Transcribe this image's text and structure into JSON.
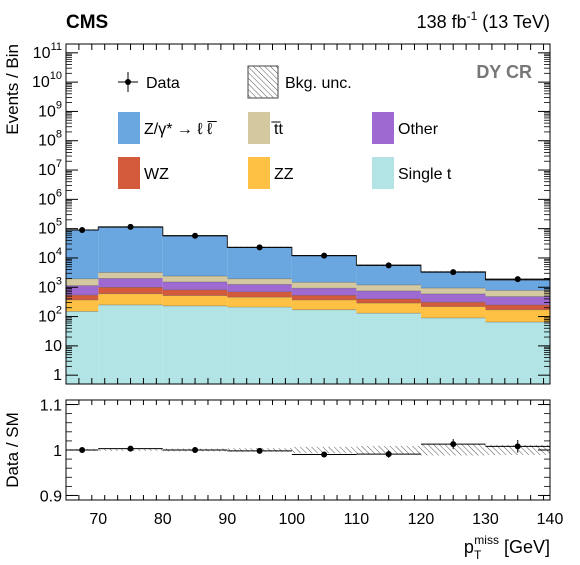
{
  "header": {
    "experiment": "CMS",
    "lumi_value": "138 fb",
    "lumi_exp": "-1",
    "energy": "(13 TeV)",
    "region": "DY CR"
  },
  "chart_data": [
    {
      "type": "bar",
      "stacked": true,
      "yscale": "log",
      "ylabel": "Events / Bin",
      "ylim": [
        0.5,
        200000000000
      ],
      "xlim": [
        65,
        140
      ],
      "bin_edges": [
        65,
        70,
        80,
        90,
        100,
        110,
        120,
        130,
        140
      ],
      "series": [
        {
          "name": "Single t",
          "key": "singlet",
          "color": "#b2e4e6",
          "values": [
            150,
            250,
            230,
            210,
            170,
            130,
            90,
            65
          ]
        },
        {
          "name": "ZZ",
          "key": "zz",
          "color": "#ffc144",
          "values": [
            220,
            350,
            290,
            250,
            200,
            160,
            130,
            105
          ]
        },
        {
          "name": "WZ",
          "key": "wz",
          "color": "#d45a3c",
          "values": [
            170,
            400,
            300,
            240,
            160,
            110,
            90,
            80
          ]
        },
        {
          "name": "Other",
          "key": "other",
          "color": "#9e6ad2",
          "values": [
            600,
            1000,
            700,
            550,
            400,
            350,
            280,
            230
          ]
        },
        {
          "name": "t̅t",
          "key": "ttbar",
          "color": "#d3c89f",
          "values": [
            800,
            1200,
            900,
            700,
            550,
            450,
            350,
            300
          ]
        },
        {
          "name": "Z/γ* → ℓ ℓ̅",
          "key": "dy",
          "color": "#6aa6e0",
          "values": [
            88000,
            110000,
            55000,
            21000,
            10500,
            4500,
            2400,
            1000
          ]
        }
      ],
      "data": {
        "name": "Data",
        "x": [
          67.5,
          75,
          85,
          95,
          105,
          115,
          125,
          135
        ],
        "y": [
          90000,
          115000,
          57000,
          23000,
          12000,
          5600,
          3300,
          1900
        ]
      },
      "uncertainty_label": "Bkg. unc.",
      "legend": "top"
    },
    {
      "type": "scatter",
      "ylabel": "Data / SM",
      "xlabel": "p",
      "xlabel_sub": "T",
      "xlabel_sup": "miss",
      "xlabel_unit": "[GeV]",
      "ylim": [
        0.89,
        1.11
      ],
      "xlim": [
        65,
        140
      ],
      "bin_edges": [
        65,
        70,
        80,
        90,
        100,
        110,
        120,
        130,
        140
      ],
      "x": [
        67.5,
        75,
        85,
        95,
        105,
        115,
        125,
        135
      ],
      "ratio": [
        1.0,
        1.003,
        1.0,
        0.998,
        0.99,
        0.991,
        1.013,
        1.008
      ],
      "ratio_err": [
        0.002,
        0.002,
        0.002,
        0.003,
        0.005,
        0.008,
        0.011,
        0.014
      ],
      "band_halfwidth": [
        0.002,
        0.002,
        0.003,
        0.004,
        0.007,
        0.009,
        0.012,
        0.011
      ],
      "yticks": [
        "0.9",
        "1",
        "1.1"
      ],
      "xticks": [
        "70",
        "80",
        "90",
        "100",
        "110",
        "120",
        "130",
        "140"
      ]
    }
  ]
}
